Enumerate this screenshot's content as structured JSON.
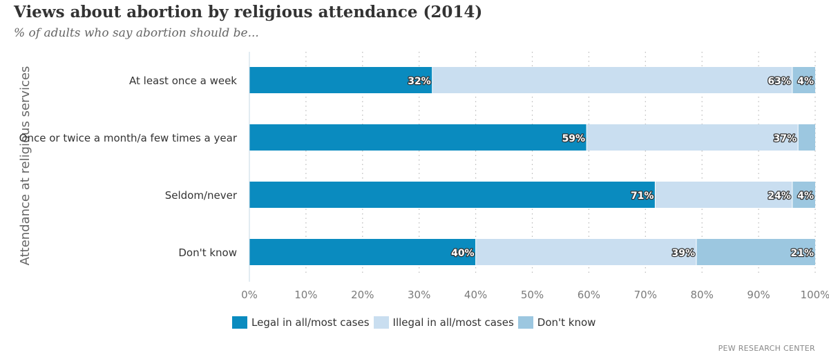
{
  "title": "Views about abortion by religious attendance (2014)",
  "subtitle": "% of adults who say abortion should be...",
  "source": "PEW RESEARCH CENTER",
  "chart_data": {
    "type": "bar",
    "orientation": "horizontal",
    "stacked": true,
    "ylabel": "Attendance at religious services",
    "xlim": [
      0,
      100
    ],
    "x_ticks": [
      "0%",
      "10%",
      "20%",
      "30%",
      "40%",
      "50%",
      "60%",
      "70%",
      "80%",
      "90%",
      "100%"
    ],
    "grid": true,
    "legend_position": "bottom",
    "categories": [
      "At least once a week",
      "Once or twice a month/a few times a year",
      "Seldom/never",
      "Don't know"
    ],
    "series": [
      {
        "name": "Legal in all/most cases",
        "color": "#0a8bbf",
        "values": [
          32,
          59,
          71,
          40
        ]
      },
      {
        "name": "Illegal in all/most cases",
        "color": "#c9def0",
        "values": [
          63,
          37,
          24,
          39
        ]
      },
      {
        "name": "Don't know",
        "color": "#9cc7e0",
        "values": [
          4,
          3,
          4,
          21
        ]
      }
    ],
    "data_labels": [
      [
        "32%",
        "63%",
        "4%"
      ],
      [
        "59%",
        "37%",
        ""
      ],
      [
        "71%",
        "24%",
        "4%"
      ],
      [
        "40%",
        "39%",
        "21%"
      ]
    ]
  }
}
